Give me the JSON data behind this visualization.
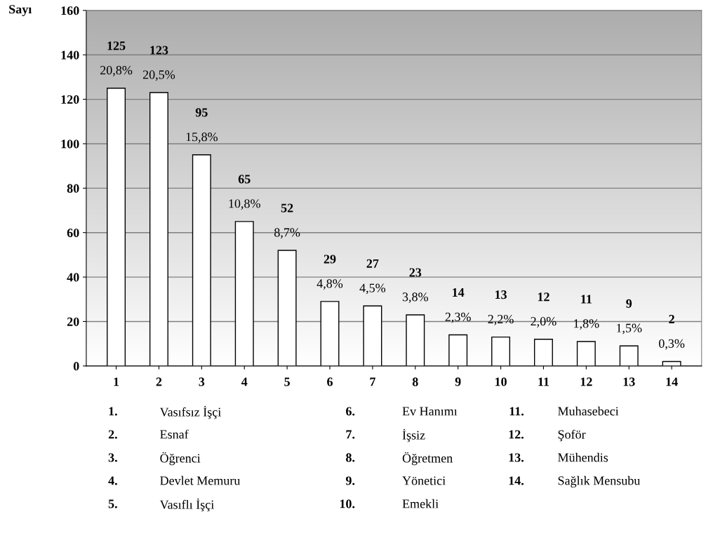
{
  "chart_data": {
    "type": "bar",
    "ylabel": "Sayı",
    "categories": [
      "1",
      "2",
      "3",
      "4",
      "5",
      "6",
      "7",
      "8",
      "9",
      "10",
      "11",
      "12",
      "13",
      "14"
    ],
    "values": [
      125,
      123,
      95,
      65,
      52,
      29,
      27,
      23,
      14,
      13,
      12,
      11,
      9,
      2
    ],
    "color": "#ffffff",
    "ylim": [
      0,
      160
    ],
    "yticks": [
      0,
      20,
      40,
      60,
      80,
      100,
      120,
      140,
      160
    ],
    "grid": "y",
    "data_labels": true,
    "annotations": [
      {
        "text": "20,8%",
        "x": "1",
        "y": 125
      },
      {
        "text": "20,5%",
        "x": "2",
        "y": 123
      },
      {
        "text": "15,8%",
        "x": "3",
        "y": 95
      },
      {
        "text": "10,8%",
        "x": "4",
        "y": 65
      },
      {
        "text": "8,7%",
        "x": "5",
        "y": 52
      },
      {
        "text": "4,8%",
        "x": "6",
        "y": 29
      },
      {
        "text": "4,5%",
        "x": "7",
        "y": 27
      },
      {
        "text": "3,8%",
        "x": "8",
        "y": 23
      },
      {
        "text": "2,3%",
        "x": "9",
        "y": 14
      },
      {
        "text": "2,2%",
        "x": "10",
        "y": 13
      },
      {
        "text": "2,0%",
        "x": "11",
        "y": 12
      },
      {
        "text": "1,8%",
        "x": "12",
        "y": 11
      },
      {
        "text": "1,5%",
        "x": "13",
        "y": 9
      },
      {
        "text": "0,3%",
        "x": "14",
        "y": 2
      },
      "1. Vasıfsız İşçi",
      "2. Esnaf",
      "3. Öğrenci",
      "4. Devlet Memuru",
      "5. Vasıflı İşçi",
      "6. Ev Hanımı",
      "7. İşsiz",
      "8. Öğretmen",
      "9. Yönetici",
      "10. Emekli",
      "11. Muhasebeci",
      "12. Şoför",
      "13. Mühendis",
      "14. Sağlık Mensubu"
    ]
  }
}
